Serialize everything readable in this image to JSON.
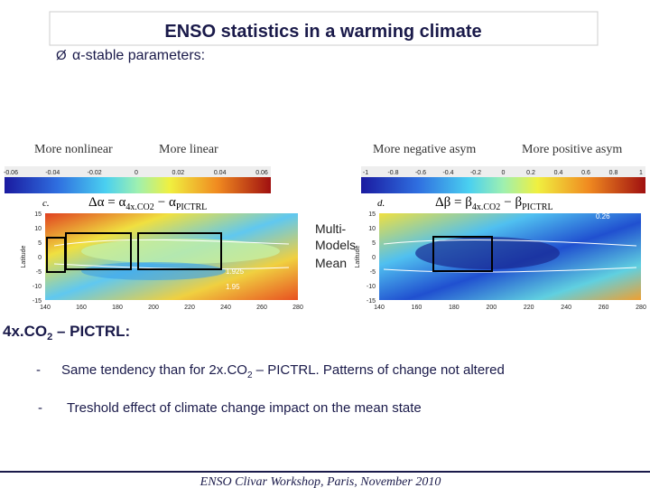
{
  "header": {
    "title": "ENSO statistics in a warming climate",
    "bullet": "Ø",
    "subtitle": "α-stable parameters:"
  },
  "left_panel": {
    "label_left": "More nonlinear",
    "label_right": "More linear",
    "colorbar_ticks": [
      "-0.06",
      "-0.04",
      "-0.02",
      "0",
      "0.02",
      "0.04",
      "0.06"
    ],
    "letter": "c.",
    "formula": [
      "Δα = α",
      "4x.CO2",
      "− α",
      "PICTRL"
    ],
    "contour_labels": [
      "1.925",
      "1.95"
    ]
  },
  "right_panel": {
    "label_left": "More negative asym",
    "label_right": "More positive asym",
    "colorbar_ticks": [
      "-1",
      "-0.8",
      "-0.6",
      "-0.4",
      "-0.2",
      "0",
      "0.2",
      "0.4",
      "0.6",
      "0.8",
      "1"
    ],
    "letter": "d.",
    "formula": [
      "Δβ = β",
      "4x.CO2",
      "− β",
      "PICTRL"
    ],
    "contour_labels": [
      "0.26"
    ]
  },
  "map_axes": {
    "ylabel": "Latitude",
    "yticks": [
      "15",
      "10",
      "5",
      "0",
      "-5",
      "-10",
      "-15"
    ],
    "xticks": [
      "140",
      "160",
      "180",
      "200",
      "220",
      "240",
      "260",
      "280"
    ]
  },
  "center_note": [
    "Multi-",
    "Models",
    "Mean"
  ],
  "section": {
    "heading": [
      "4x.CO",
      "2",
      " – PICTRL:"
    ],
    "bullets": [
      {
        "dash": "-",
        "parts": [
          "Same tendency than for 2x.CO",
          "2",
          " – PICTRL. Patterns of change not altered"
        ]
      },
      {
        "dash": "-",
        "parts": [
          "Treshold effect of climate change impact on the mean state"
        ]
      }
    ]
  },
  "footer": "ENSO Clivar Workshop, Paris, November 2010"
}
